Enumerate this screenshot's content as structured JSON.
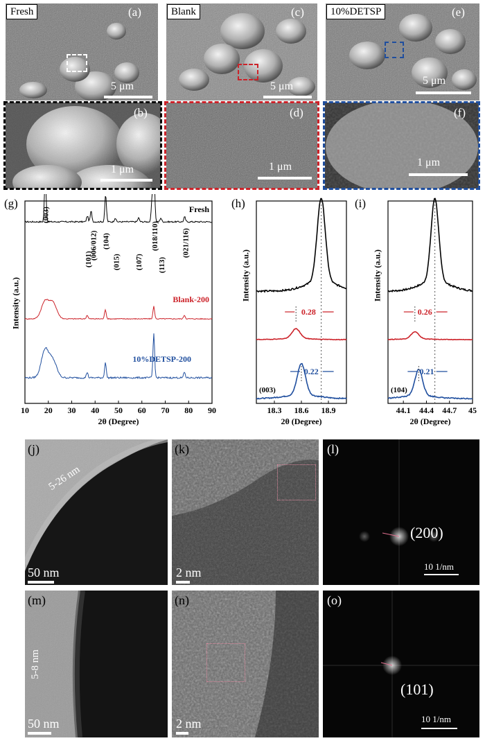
{
  "sem_top": {
    "a": {
      "label": "(a)",
      "tag": "Fresh",
      "scale": "5 μm"
    },
    "c": {
      "label": "(c)",
      "tag": "Blank",
      "scale": "5 μm"
    },
    "e": {
      "label": "(e)",
      "tag": "10%DETSP",
      "scale": "5 μm"
    }
  },
  "sem_zoom": {
    "b": {
      "label": "(b)",
      "scale": "1 μm"
    },
    "d": {
      "label": "(d)",
      "scale": "1 μm"
    },
    "f": {
      "label": "(f)",
      "scale": "1 μm"
    }
  },
  "colors": {
    "fresh": "#000000",
    "blank": "#cc2229",
    "detsp": "#1f4e9e"
  },
  "chart_data": [
    {
      "id": "g",
      "type": "line",
      "panel_label": "(g)",
      "xlabel": "2θ (Degree)",
      "ylabel": "Intensity (a.u.)",
      "xlim": [
        10,
        90
      ],
      "xticks": [
        10,
        20,
        30,
        40,
        50,
        60,
        70,
        80,
        90
      ],
      "series": [
        {
          "name": "Fresh",
          "peaks": [
            [
              18.7,
              1.0
            ],
            [
              36.7,
              0.12
            ],
            [
              38.3,
              0.22
            ],
            [
              44.5,
              0.55
            ],
            [
              48.6,
              0.08
            ],
            [
              58.6,
              0.08
            ],
            [
              64.4,
              0.5
            ],
            [
              65.2,
              1.0
            ],
            [
              68.1,
              0.08
            ],
            [
              78.3,
              0.1
            ]
          ]
        },
        {
          "name": "Blank-200",
          "peaks": [
            [
              18.6,
              0.55
            ],
            [
              22.0,
              0.5
            ],
            [
              36.6,
              0.12
            ],
            [
              44.4,
              0.3
            ],
            [
              65.1,
              0.4
            ],
            [
              78.2,
              0.12
            ]
          ]
        },
        {
          "name": "10%DETSP-200",
          "peaks": [
            [
              18.6,
              0.5
            ],
            [
              22.0,
              0.3
            ],
            [
              36.6,
              0.1
            ],
            [
              44.4,
              0.28
            ],
            [
              65.1,
              0.8
            ],
            [
              78.2,
              0.1
            ]
          ]
        }
      ],
      "annotations": [
        "(003)",
        "(101)",
        "(006/012)",
        "(104)",
        "(015)",
        "(107)",
        "(018/110)",
        "(113)",
        "(021/116)"
      ]
    },
    {
      "id": "h",
      "type": "line",
      "panel_label": "(h)",
      "xlabel": "2θ (Degree)",
      "ylabel": "Intensity (a.u.)",
      "xlim": [
        18.1,
        19.1
      ],
      "xticks": [
        18.3,
        18.6,
        18.9
      ],
      "peak_label": "(003)",
      "reference_line": 18.82,
      "series": [
        {
          "name": "Fresh",
          "peak": 18.82,
          "height": 1.0
        },
        {
          "name": "Blank-200",
          "peak": 18.54,
          "height": 0.35,
          "shift": "0.28"
        },
        {
          "name": "10%DETSP-200",
          "peak": 18.6,
          "height": 0.6,
          "shift": "0.22"
        }
      ]
    },
    {
      "id": "i",
      "type": "line",
      "panel_label": "(i)",
      "xlabel": "2θ (Degree)",
      "ylabel": "Intensity (a.u.)",
      "xlim": [
        43.9,
        45.0
      ],
      "xticks": [
        44.1,
        44.4,
        44.7,
        45.0
      ],
      "peak_label": "(104)",
      "reference_line": 44.51,
      "series": [
        {
          "name": "Fresh",
          "peak": 44.51,
          "height": 1.0
        },
        {
          "name": "Blank-200",
          "peak": 44.25,
          "height": 0.25,
          "shift": "0.26"
        },
        {
          "name": "10%DETSP-200",
          "peak": 44.3,
          "height": 0.5,
          "shift": "0.21"
        }
      ]
    }
  ],
  "tem": {
    "j": {
      "label": "(j)",
      "scale": "50 nm",
      "thickness": "5-26 nm"
    },
    "k": {
      "label": "(k)",
      "scale": "2 nm"
    },
    "l": {
      "label": "(l)",
      "plane": "(200)",
      "scale": "10 1/nm"
    },
    "m": {
      "label": "(m)",
      "scale": "50 nm",
      "thickness": "5-8 nm"
    },
    "n": {
      "label": "(n)",
      "scale": "2 nm"
    },
    "o": {
      "label": "(o)",
      "plane": "(101)",
      "scale": "10 1/nm"
    }
  }
}
